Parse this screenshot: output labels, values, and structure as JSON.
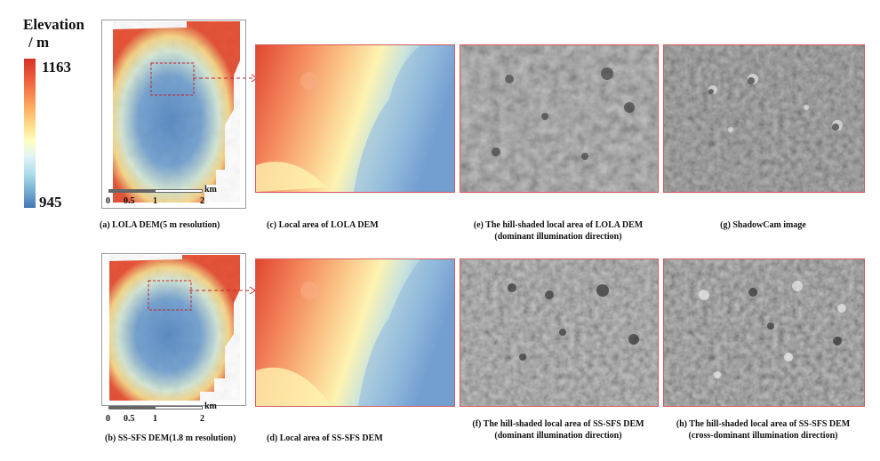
{
  "legend": {
    "title_line1": "Elevation",
    "title_line2": "/ m",
    "max": "1163",
    "min": "945",
    "colors": [
      "#d73027",
      "#f46d43",
      "#fdae61",
      "#fee090",
      "#ffffbf",
      "#e0f3f8",
      "#abd9e9",
      "#74add1",
      "#4575b4"
    ]
  },
  "scalebar": {
    "unit": "km",
    "ticks": [
      "0",
      "0.5",
      "1",
      "2"
    ]
  },
  "captions": {
    "a": "(a) LOLA DEM(5 m resolution)",
    "b": "(b) SS-SFS DEM(1.8 m resolution)",
    "c": "(c) Local area of LOLA DEM",
    "d": "(d) Local area of SS-SFS DEM",
    "e_line1": "(e) The hill-shaded local area of LOLA DEM",
    "e_line2": "(dominant illumination direction)",
    "f_line1": "(f) The hill-shaded local area of SS-SFS DEM",
    "f_line2": "(dominant illumination direction)",
    "g": "(g)  ShadowCam image",
    "h_line1": "(h) The hill-shaded  local area of SS-SFS DEM",
    "h_line2": "(cross-dominant illumination direction)"
  }
}
